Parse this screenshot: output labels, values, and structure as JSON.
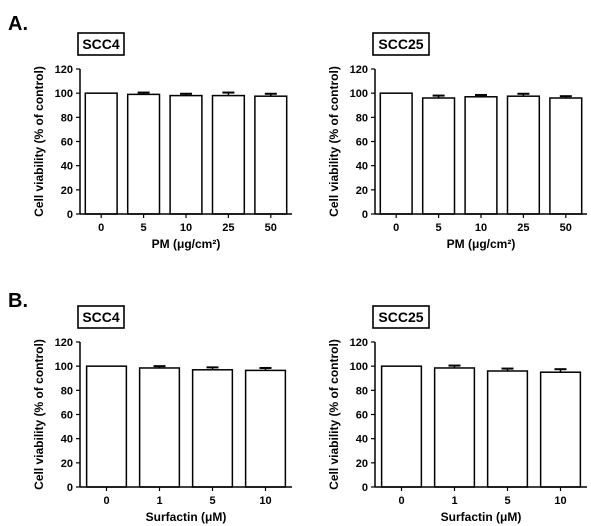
{
  "panels": [
    {
      "letter": "A."
    },
    {
      "letter": "B."
    }
  ],
  "chart_data": [
    {
      "type": "bar",
      "panel": "A.",
      "cell_line": "SCC4",
      "categories": [
        "0",
        "5",
        "10",
        "25",
        "50"
      ],
      "values": [
        100,
        99,
        98,
        98,
        97.5
      ],
      "errors": [
        0,
        1.5,
        1.5,
        2.5,
        2
      ],
      "xlabel": "PM (μg/cm²)",
      "ylabel": "Cell viability (% of control)",
      "ylim": [
        0,
        120
      ],
      "yticks": [
        "0",
        "20",
        "40",
        "60",
        "80",
        "100",
        "120"
      ],
      "grid": false
    },
    {
      "type": "bar",
      "panel": "A.",
      "cell_line": "SCC25",
      "categories": [
        "0",
        "5",
        "10",
        "25",
        "50"
      ],
      "values": [
        100,
        96,
        97,
        97.5,
        96
      ],
      "errors": [
        0,
        2,
        1.5,
        2,
        1.5
      ],
      "xlabel": "PM (μg/cm²)",
      "ylabel": "Cell viability (% of control)",
      "ylim": [
        0,
        120
      ],
      "yticks": [
        "0",
        "20",
        "40",
        "60",
        "80",
        "100",
        "120"
      ],
      "grid": false
    },
    {
      "type": "bar",
      "panel": "B.",
      "cell_line": "SCC4",
      "categories": [
        "0",
        "1",
        "5",
        "10"
      ],
      "values": [
        100,
        98.5,
        97,
        96.5
      ],
      "errors": [
        0,
        1.5,
        2,
        2
      ],
      "xlabel": "Surfactin (μM)",
      "ylabel": "Cell viability (% of control)",
      "ylim": [
        0,
        120
      ],
      "yticks": [
        "0",
        "20",
        "40",
        "60",
        "80",
        "100",
        "120"
      ],
      "grid": false
    },
    {
      "type": "bar",
      "panel": "B.",
      "cell_line": "SCC25",
      "categories": [
        "0",
        "1",
        "5",
        "10"
      ],
      "values": [
        100,
        98.5,
        96,
        95
      ],
      "errors": [
        0,
        2,
        2,
        2.5
      ],
      "xlabel": "Surfactin (μM)",
      "ylabel": "Cell viability (% of control)",
      "ylim": [
        0,
        120
      ],
      "yticks": [
        "0",
        "20",
        "40",
        "60",
        "80",
        "100",
        "120"
      ],
      "grid": false
    }
  ]
}
